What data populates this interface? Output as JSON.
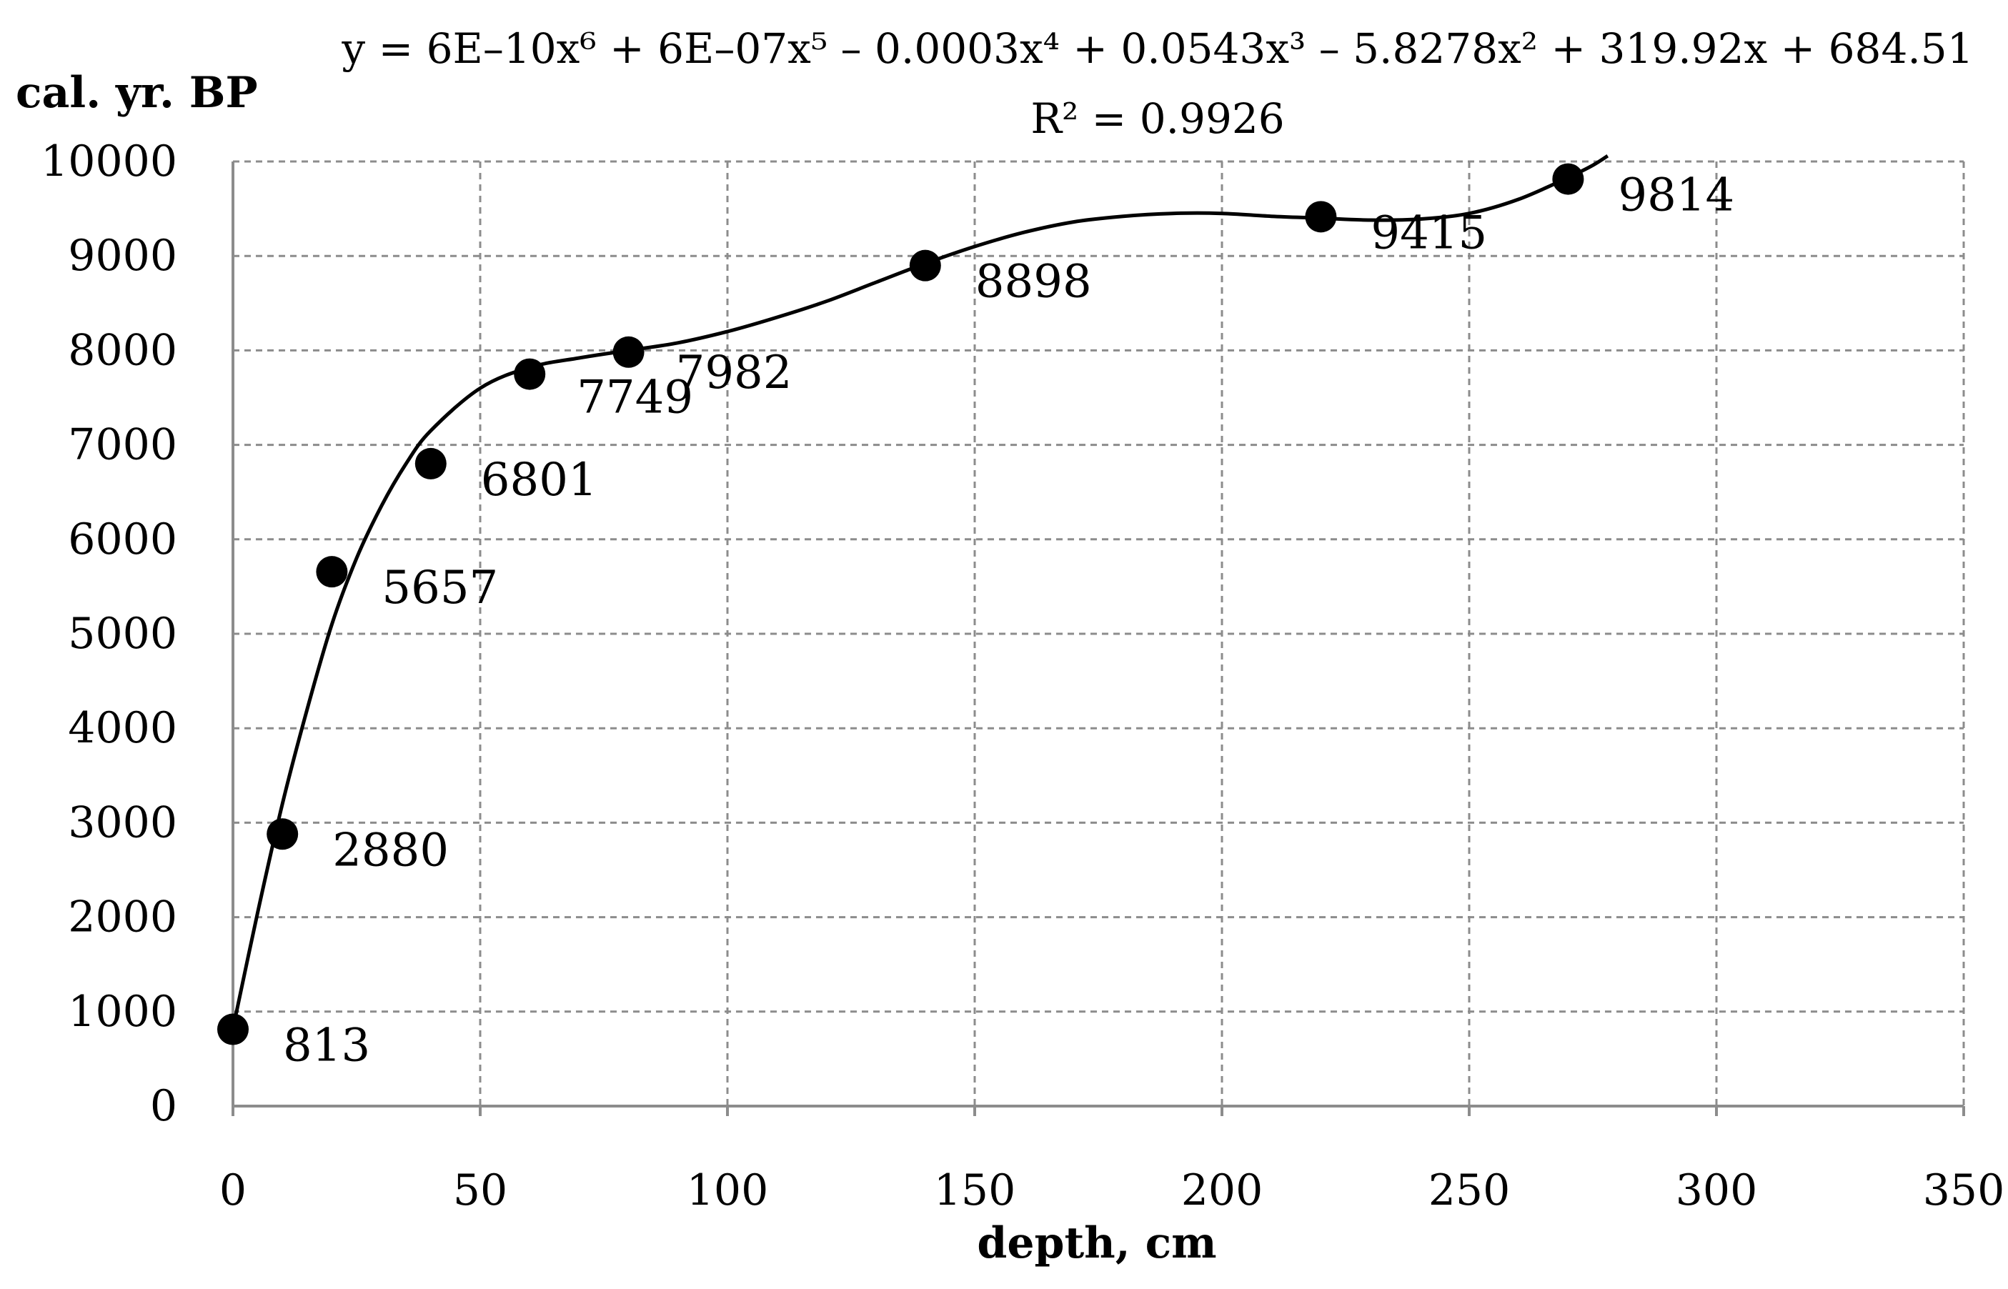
{
  "chart_data": {
    "type": "scatter",
    "xlabel": "depth, cm",
    "ylabel": "cal. yr. BP",
    "xlim": [
      0,
      350
    ],
    "ylim": [
      0,
      10000
    ],
    "x_ticks": [
      "0",
      "50",
      "100",
      "150",
      "200",
      "250",
      "300",
      "350"
    ],
    "y_ticks": [
      "0",
      "1000",
      "2000",
      "3000",
      "4000",
      "5000",
      "6000",
      "7000",
      "8000",
      "9000",
      "10000"
    ],
    "grid": true,
    "legend": "none",
    "series": [
      {
        "points": [
          {
            "x": 0,
            "y": 813,
            "label": "813"
          },
          {
            "x": 10,
            "y": 2880,
            "label": "2880"
          },
          {
            "x": 20,
            "y": 5657,
            "label": "5657"
          },
          {
            "x": 40,
            "y": 6801,
            "label": "6801"
          },
          {
            "x": 60,
            "y": 7749,
            "label": "7749"
          },
          {
            "x": 80,
            "y": 7982,
            "label": "7982"
          },
          {
            "x": 140,
            "y": 8898,
            "label": "8898"
          },
          {
            "x": 220,
            "y": 9415,
            "label": "9415"
          },
          {
            "x": 270,
            "y": 9814,
            "label": "9814"
          }
        ]
      }
    ],
    "trendline": {
      "type": "polynomial",
      "order": 6,
      "equation_text": "y = 6E–10x⁶ + 6E–07x⁵ – 0.0003x⁴ + 0.0543x³ – 5.8278x² + 319.92x + 684.51",
      "r2_text": "R² = 0.9926",
      "curve": [
        {
          "x": 0,
          "y": 820
        },
        {
          "x": 5,
          "y": 2050
        },
        {
          "x": 10,
          "y": 3200
        },
        {
          "x": 15,
          "y": 4200
        },
        {
          "x": 20,
          "y": 5100
        },
        {
          "x": 25,
          "y": 5800
        },
        {
          "x": 30,
          "y": 6350
        },
        {
          "x": 35,
          "y": 6800
        },
        {
          "x": 40,
          "y": 7150
        },
        {
          "x": 50,
          "y": 7600
        },
        {
          "x": 60,
          "y": 7820
        },
        {
          "x": 70,
          "y": 7920
        },
        {
          "x": 80,
          "y": 8000
        },
        {
          "x": 90,
          "y": 8080
        },
        {
          "x": 100,
          "y": 8200
        },
        {
          "x": 110,
          "y": 8350
        },
        {
          "x": 120,
          "y": 8520
        },
        {
          "x": 130,
          "y": 8720
        },
        {
          "x": 140,
          "y": 8920
        },
        {
          "x": 150,
          "y": 9100
        },
        {
          "x": 160,
          "y": 9250
        },
        {
          "x": 170,
          "y": 9360
        },
        {
          "x": 180,
          "y": 9420
        },
        {
          "x": 190,
          "y": 9450
        },
        {
          "x": 200,
          "y": 9450
        },
        {
          "x": 210,
          "y": 9420
        },
        {
          "x": 220,
          "y": 9400
        },
        {
          "x": 230,
          "y": 9380
        },
        {
          "x": 240,
          "y": 9390
        },
        {
          "x": 250,
          "y": 9450
        },
        {
          "x": 260,
          "y": 9600
        },
        {
          "x": 270,
          "y": 9830
        },
        {
          "x": 275,
          "y": 9960
        },
        {
          "x": 278,
          "y": 10060
        }
      ]
    }
  }
}
